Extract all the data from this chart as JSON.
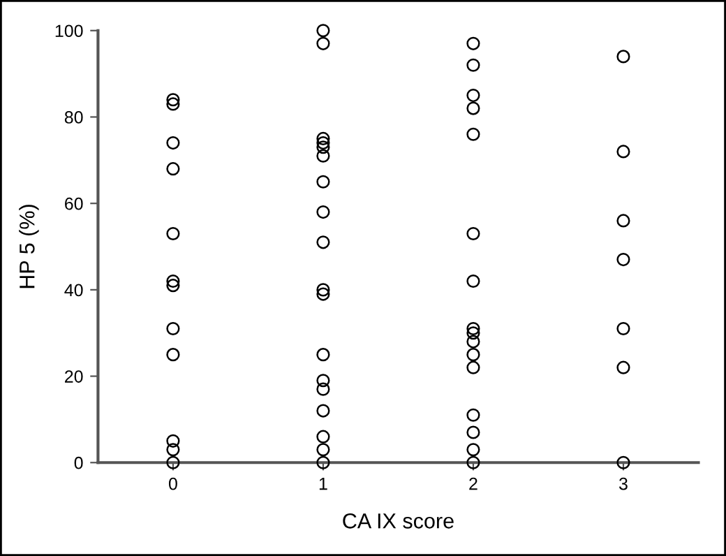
{
  "chart_data": {
    "type": "scatter",
    "xlabel": "CA IX score",
    "ylabel": "HP 5 (%)",
    "xlim": [
      -0.5,
      3.5
    ],
    "xticks": [
      0,
      1,
      2,
      3
    ],
    "ylim": [
      0,
      100
    ],
    "yticks": [
      0,
      20,
      40,
      60,
      80,
      100
    ],
    "marker": "circle",
    "grid": false,
    "series": [
      {
        "color": "#000000",
        "x": [
          0,
          0,
          0,
          0,
          0,
          0,
          0,
          0,
          0,
          0,
          0,
          0,
          1,
          1,
          1,
          1,
          1,
          1,
          1,
          1,
          1,
          1,
          1,
          1,
          1,
          1,
          1,
          1,
          1,
          1,
          2,
          2,
          2,
          2,
          2,
          2,
          2,
          2,
          2,
          2,
          2,
          2,
          2,
          2,
          2,
          2,
          3,
          3,
          3,
          3,
          3,
          3,
          3
        ],
        "values": [
          84,
          83,
          74,
          68,
          53,
          42,
          41,
          31,
          25,
          5,
          3,
          0,
          100,
          97,
          75,
          74,
          73,
          71,
          65,
          58,
          51,
          40,
          39,
          25,
          19,
          17,
          12,
          6,
          3,
          0,
          97,
          92,
          85,
          82,
          76,
          53,
          42,
          31,
          30,
          28,
          25,
          22,
          11,
          7,
          3,
          0,
          94,
          72,
          56,
          47,
          31,
          22,
          0
        ]
      }
    ]
  }
}
